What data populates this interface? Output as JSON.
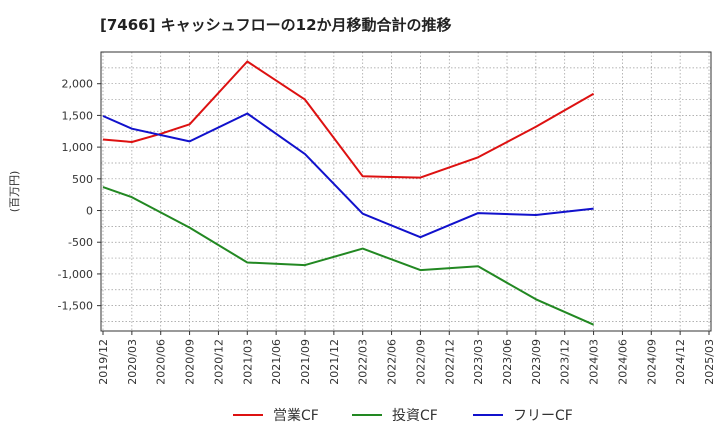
{
  "chart_data": {
    "type": "line",
    "title": "[7466]  キャッシュフローの12か月移動合計の推移",
    "xlabel": "",
    "ylabel": "(百万円)",
    "ylim": [
      -1900,
      2500
    ],
    "yticks": [
      2000,
      1500,
      1000,
      500,
      0,
      -500,
      -1000,
      -1500
    ],
    "ytick_labels": [
      "2,000",
      "1,500",
      "1,000",
      "500",
      "0",
      "-500",
      "-1,000",
      "-1,500"
    ],
    "categories": [
      "2019/12",
      "2020/03",
      "2020/06",
      "2020/09",
      "2020/12",
      "2021/03",
      "2021/06",
      "2021/09",
      "2021/12",
      "2022/03",
      "2022/06",
      "2022/09",
      "2022/12",
      "2023/03",
      "2023/06",
      "2023/09",
      "2023/12",
      "2024/03",
      "2024/06",
      "2024/09",
      "2024/12",
      "2025/03"
    ],
    "grid": true,
    "legend_position": "bottom",
    "series": [
      {
        "name": "営業CF",
        "color": "#dd1111",
        "values": [
          1120,
          1080,
          1210,
          1360,
          null,
          2350,
          null,
          1750,
          null,
          540,
          null,
          520,
          null,
          840,
          null,
          1320,
          null,
          1840,
          null,
          null,
          null,
          null
        ]
      },
      {
        "name": "投資CF",
        "color": "#228822",
        "values": [
          370,
          210,
          null,
          -270,
          null,
          -820,
          null,
          -860,
          null,
          -600,
          null,
          -940,
          null,
          -880,
          null,
          -1400,
          null,
          -1800,
          null,
          null,
          null,
          null
        ]
      },
      {
        "name": "フリーCF",
        "color": "#1111cc",
        "values": [
          1490,
          1290,
          null,
          1090,
          null,
          1530,
          null,
          890,
          null,
          -50,
          null,
          -420,
          null,
          -40,
          null,
          -70,
          null,
          30,
          null,
          null,
          null,
          null
        ]
      }
    ]
  }
}
